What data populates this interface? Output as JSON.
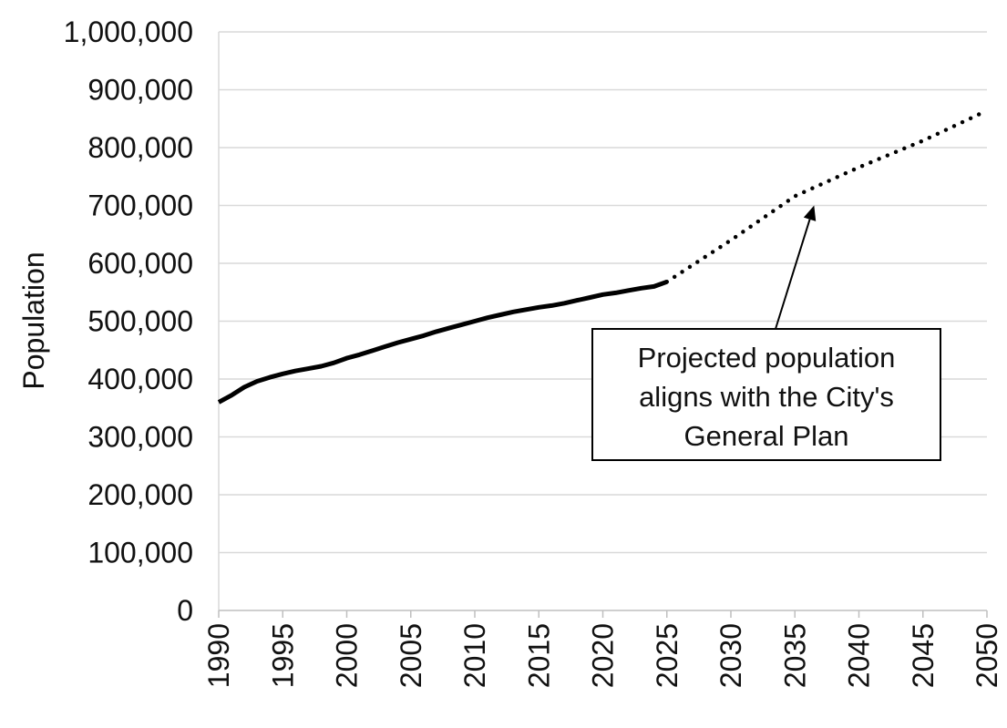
{
  "chart_data": {
    "type": "line",
    "title": "",
    "xlabel": "",
    "ylabel": "Population",
    "xlim": [
      1990,
      2050
    ],
    "ylim": [
      0,
      1000000
    ],
    "x_ticks": [
      1990,
      1995,
      2000,
      2005,
      2010,
      2015,
      2020,
      2025,
      2030,
      2035,
      2040,
      2045,
      2050
    ],
    "x_tick_labels": [
      "1990",
      "1995",
      "2000",
      "2005",
      "2010",
      "2015",
      "2020",
      "2025",
      "2030",
      "2035",
      "2040",
      "2045",
      "2050"
    ],
    "y_ticks": [
      0,
      100000,
      200000,
      300000,
      400000,
      500000,
      600000,
      700000,
      800000,
      900000,
      1000000
    ],
    "y_tick_labels": [
      "0",
      "100,000",
      "200,000",
      "300,000",
      "400,000",
      "500,000",
      "600,000",
      "700,000",
      "800,000",
      "900,000",
      "1,000,000"
    ],
    "grid": true,
    "legend": "none",
    "series": [
      {
        "style": "solid",
        "color": "#000000",
        "x": [
          1990,
          1991,
          1992,
          1993,
          1994,
          1995,
          1996,
          1997,
          1998,
          1999,
          2000,
          2001,
          2002,
          2003,
          2004,
          2005,
          2006,
          2007,
          2008,
          2009,
          2010,
          2011,
          2012,
          2013,
          2014,
          2015,
          2016,
          2017,
          2018,
          2019,
          2020,
          2021,
          2022,
          2023,
          2024,
          2025
        ],
        "y": [
          360000,
          372000,
          386000,
          396000,
          403000,
          409000,
          414000,
          418000,
          422000,
          428000,
          436000,
          442000,
          449000,
          456000,
          463000,
          469000,
          475000,
          482000,
          488000,
          494000,
          500000,
          506000,
          511000,
          516000,
          520000,
          524000,
          527000,
          531000,
          536000,
          541000,
          546000,
          549000,
          553000,
          557000,
          560000,
          568000
        ]
      },
      {
        "style": "dotted",
        "color": "#000000",
        "x": [
          2025,
          2030,
          2035,
          2040,
          2045,
          2050
        ],
        "y": [
          568000,
          640000,
          716000,
          766000,
          812000,
          864000
        ]
      }
    ],
    "annotation": {
      "lines": [
        "Projected population",
        "aligns with the City's",
        "General Plan"
      ],
      "arrow_target": {
        "x": 2036.5,
        "y": 700000
      }
    }
  }
}
